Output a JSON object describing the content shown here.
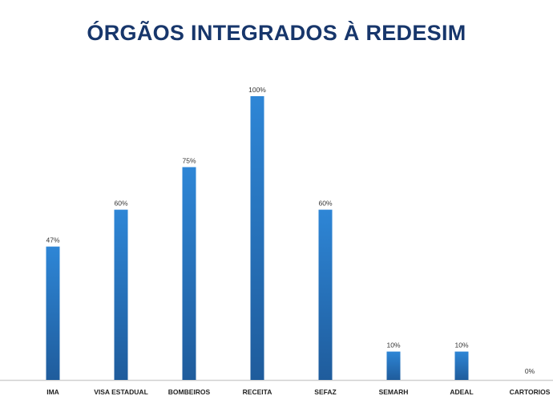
{
  "chart_data": {
    "type": "bar",
    "title": "ÓRGÃOS INTEGRADOS À REDESIM",
    "categories": [
      "IMA",
      "VISA ESTADUAL",
      "BOMBEIROS",
      "RECEITA",
      "SEFAZ",
      "SEMARH",
      "ADEAL",
      "CARTORIOS"
    ],
    "values": [
      47,
      60,
      75,
      100,
      60,
      10,
      10,
      0
    ],
    "data_labels": [
      "47%",
      "60%",
      "75%",
      "100%",
      "60%",
      "10%",
      "10%",
      "0%"
    ],
    "xlabel": "",
    "ylabel": "",
    "ylim": [
      0,
      100
    ],
    "grid": false,
    "legend": "none",
    "bar_color": "#2a7bc9",
    "bar_color_dark": "#1f5c9c",
    "title_color": "#17366b"
  }
}
